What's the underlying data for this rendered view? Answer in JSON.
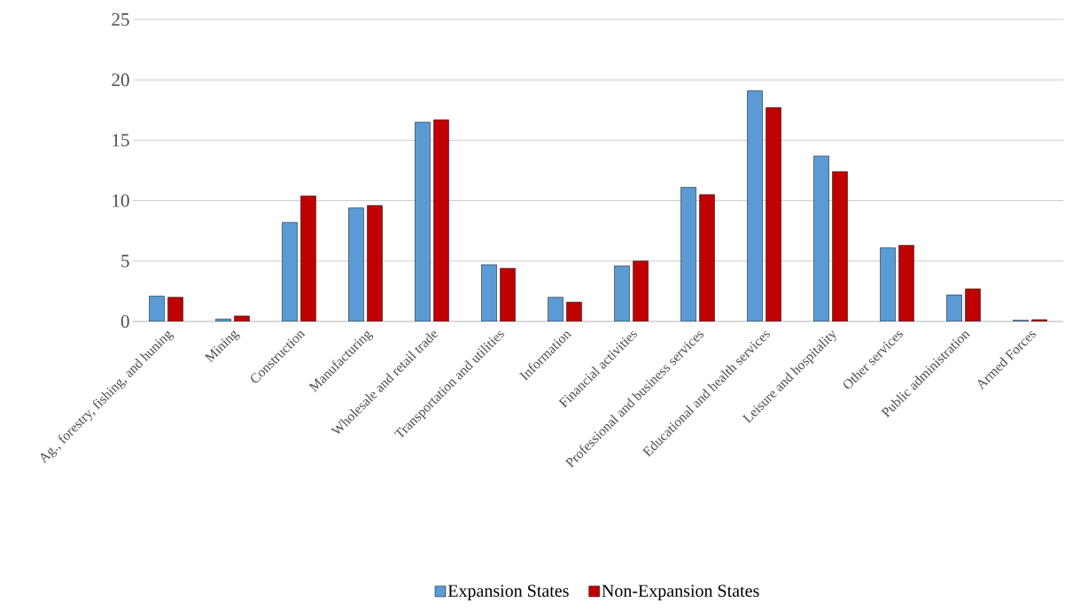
{
  "chart_data": {
    "type": "bar",
    "categories": [
      "Ag., forestry, fishing, and huning",
      "Mining",
      "Construction",
      "Manufacturing",
      "Wholesale and retail trade",
      "Transportation and utilities",
      "Information",
      "Financial activities",
      "Professional and business services",
      "Educational and health services",
      "Leisure and hospitality",
      "Other services",
      "Public administration",
      "Armed Forces"
    ],
    "series": [
      {
        "name": "Expansion States",
        "color": "#5b9bd5",
        "values": [
          2.1,
          0.2,
          8.2,
          9.4,
          16.5,
          4.7,
          2.0,
          4.6,
          11.1,
          19.1,
          13.7,
          6.1,
          2.2,
          0.1
        ]
      },
      {
        "name": "Non-Expansion States",
        "color": "#c00000",
        "values": [
          2.0,
          0.45,
          10.4,
          9.6,
          16.7,
          4.4,
          1.6,
          5.0,
          10.5,
          17.7,
          12.4,
          6.3,
          2.7,
          0.15
        ]
      }
    ],
    "ylim": [
      0,
      25
    ],
    "yticks": [
      0,
      5,
      10,
      15,
      20,
      25
    ],
    "grid": "y",
    "legend": "bottom"
  }
}
